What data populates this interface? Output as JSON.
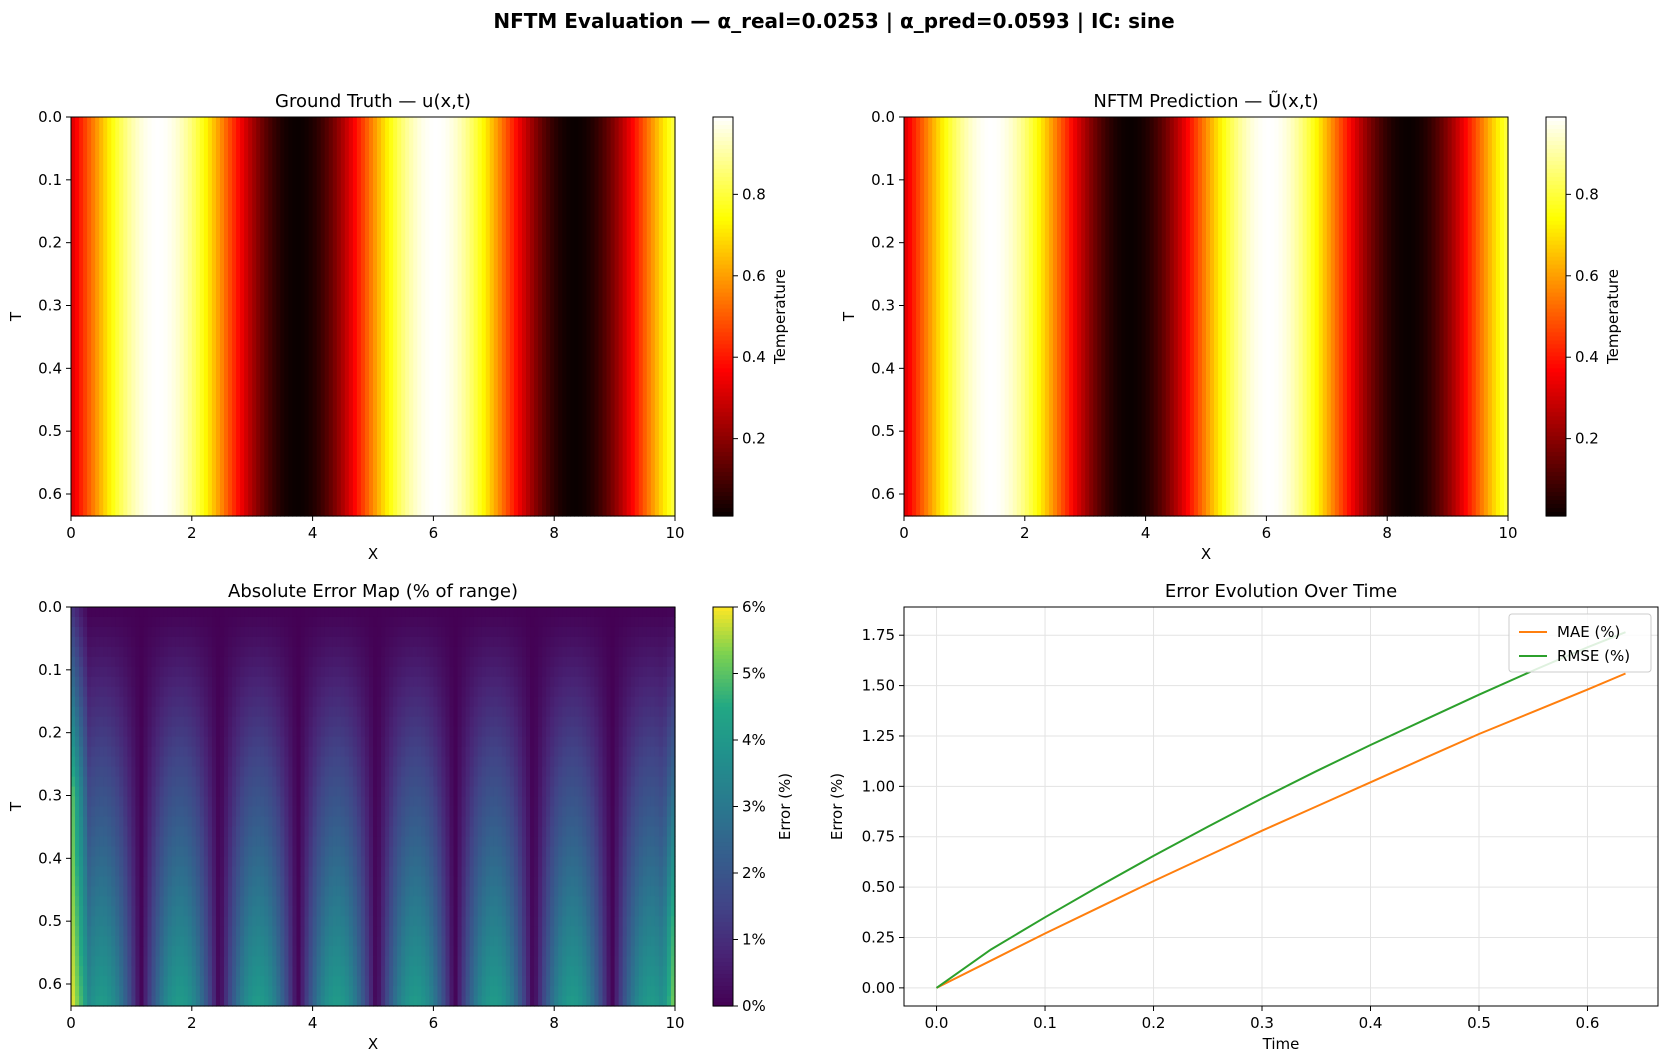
{
  "figure": {
    "suptitle": "NFTM Evaluation — α_real=0.0253 | α_pred=0.0593 | IC: sine"
  },
  "chart_data": [
    {
      "type": "heatmap",
      "title": "Ground Truth — u(x,t)",
      "xlabel": "X",
      "ylabel": "T",
      "xlim": [
        0,
        10
      ],
      "ylim": [
        0.635,
        0
      ],
      "xticks": [
        "0",
        "2",
        "4",
        "6",
        "8",
        "10"
      ],
      "yticks": [
        "0.0",
        "0.1",
        "0.2",
        "0.3",
        "0.4",
        "0.5",
        "0.6"
      ],
      "colormap": "hot",
      "colorbar": {
        "label": "Temperature",
        "range": [
          0.01,
          0.99
        ],
        "ticks": [
          "0.2",
          "0.4",
          "0.6",
          "0.8"
        ]
      },
      "field": "0.5 + 0.49*sin(2*pi*x/4.6 - 0.4) approx, near-constant along T"
    },
    {
      "type": "heatmap",
      "title": "NFTM Prediction — Ũ(x,t)",
      "xlabel": "X",
      "ylabel": "T",
      "xlim": [
        0,
        10
      ],
      "ylim": [
        0.635,
        0
      ],
      "xticks": [
        "0",
        "2",
        "4",
        "6",
        "8",
        "10"
      ],
      "yticks": [
        "0.0",
        "0.1",
        "0.2",
        "0.3",
        "0.4",
        "0.5",
        "0.6"
      ],
      "colormap": "hot",
      "colorbar": {
        "label": "Temperature",
        "range": [
          0.01,
          0.99
        ],
        "ticks": [
          "0.2",
          "0.4",
          "0.6",
          "0.8"
        ]
      }
    },
    {
      "type": "heatmap",
      "title": "Absolute Error Map (% of range)",
      "xlabel": "X",
      "ylabel": "T",
      "xlim": [
        0,
        10
      ],
      "ylim": [
        0.635,
        0
      ],
      "xticks": [
        "0",
        "2",
        "4",
        "6",
        "8",
        "10"
      ],
      "yticks": [
        "0.0",
        "0.1",
        "0.2",
        "0.3",
        "0.4",
        "0.5",
        "0.6"
      ],
      "colormap": "viridis",
      "colorbar": {
        "label": "Error (%)",
        "range": [
          0,
          6
        ],
        "ticks": [
          "0%",
          "1%",
          "2%",
          "3%",
          "4%",
          "5%",
          "6%"
        ]
      }
    },
    {
      "type": "line",
      "title": "Error Evolution Over Time",
      "xlabel": "Time",
      "ylabel": "Error (%)",
      "xlim": [
        -0.03,
        0.665
      ],
      "ylim": [
        -0.09,
        1.89
      ],
      "grid": true,
      "legend_position": "upper right",
      "xticks": [
        "0.0",
        "0.1",
        "0.2",
        "0.3",
        "0.4",
        "0.5",
        "0.6"
      ],
      "yticks": [
        "0.00",
        "0.25",
        "0.50",
        "0.75",
        "1.00",
        "1.25",
        "1.50",
        "1.75"
      ],
      "x": [
        0,
        0.05,
        0.1,
        0.15,
        0.2,
        0.25,
        0.3,
        0.35,
        0.4,
        0.45,
        0.5,
        0.55,
        0.6,
        0.635
      ],
      "series": [
        {
          "name": "MAE (%)",
          "color": "#ff7f0e",
          "values": [
            0,
            0.135,
            0.27,
            0.4,
            0.53,
            0.655,
            0.78,
            0.9,
            1.02,
            1.14,
            1.26,
            1.37,
            1.48,
            1.56
          ]
        },
        {
          "name": "RMSE (%)",
          "color": "#2ca02c",
          "values": [
            0,
            0.19,
            0.35,
            0.505,
            0.655,
            0.8,
            0.94,
            1.075,
            1.205,
            1.33,
            1.455,
            1.575,
            1.69,
            1.765
          ]
        }
      ]
    }
  ]
}
